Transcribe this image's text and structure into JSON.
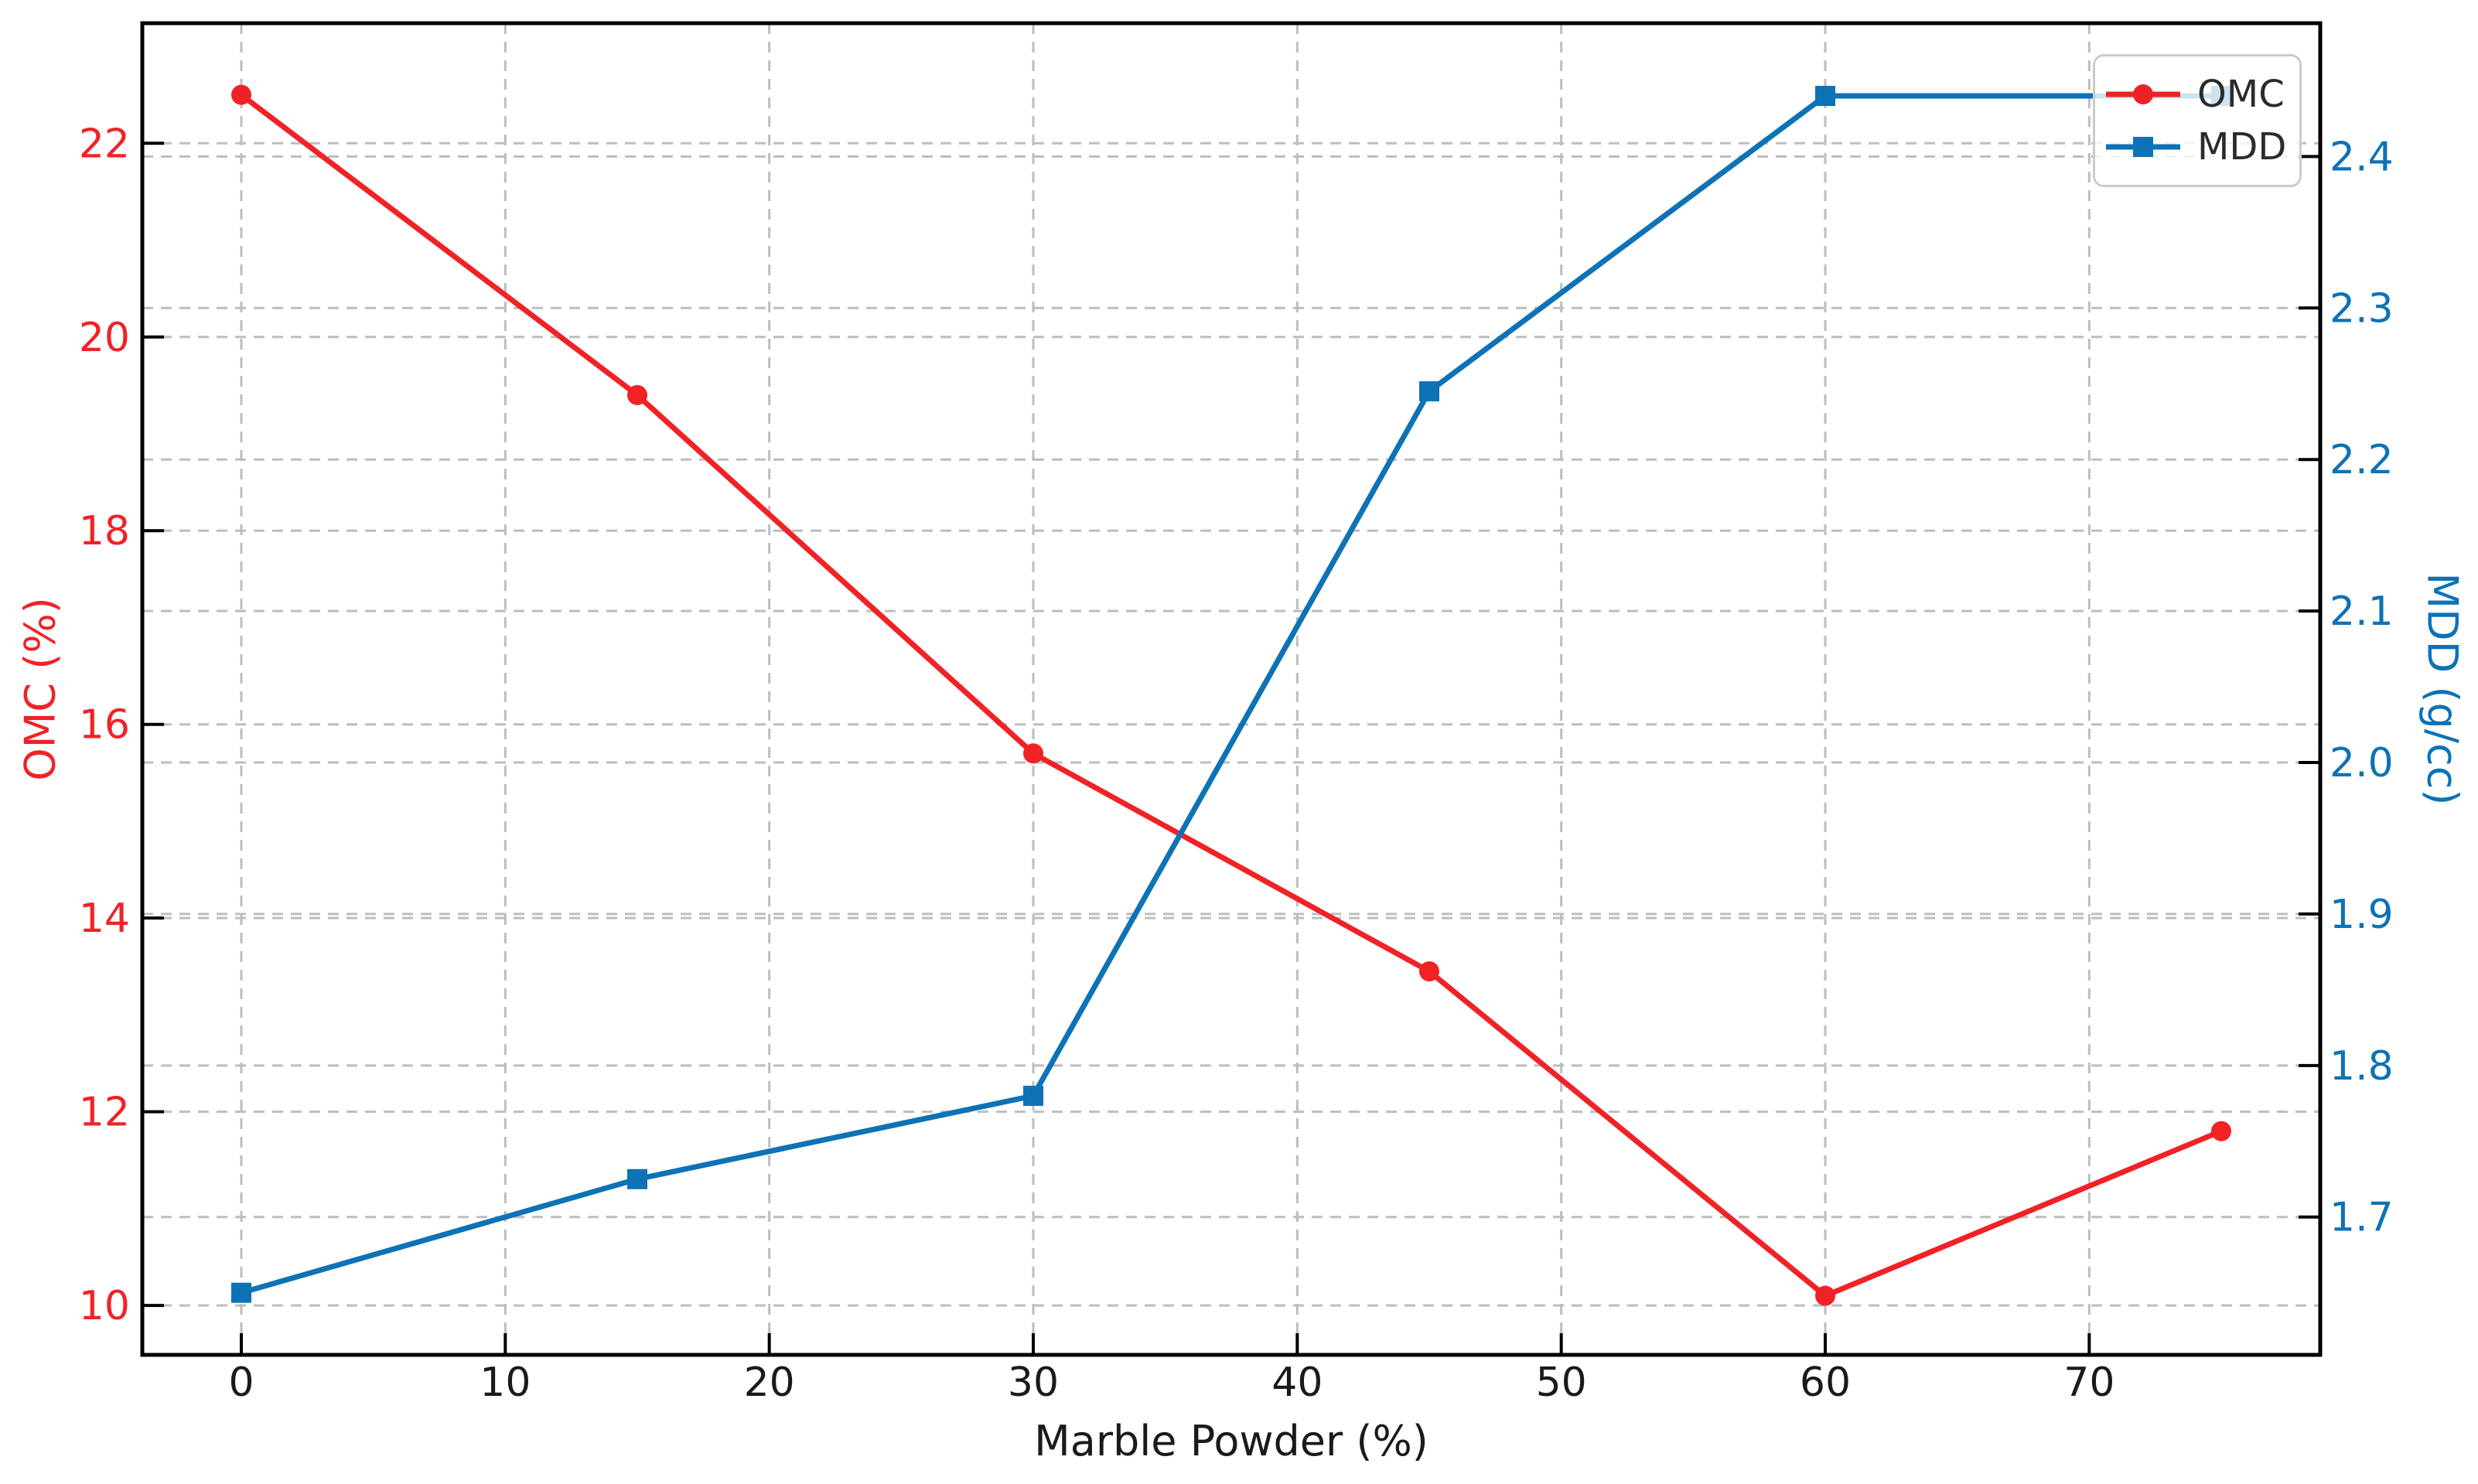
{
  "chart_data": {
    "type": "line",
    "dual_axis": true,
    "x": [
      0,
      15,
      30,
      45,
      60,
      75
    ],
    "series": [
      {
        "name": "OMC",
        "axis": "left",
        "marker": "circle",
        "color": "#f02226",
        "values": [
          22.5,
          19.4,
          15.7,
          13.45,
          10.1,
          11.8
        ]
      },
      {
        "name": "MDD",
        "axis": "right",
        "marker": "square",
        "color": "#0d72b6",
        "values": [
          1.65,
          1.725,
          1.78,
          2.245,
          2.44,
          2.44
        ]
      }
    ],
    "xlabel": "Marble Powder (%)",
    "ylabel_left": "OMC (%)",
    "ylabel_right": "MDD (g/cc)",
    "xticks": [
      0,
      10,
      20,
      30,
      40,
      50,
      60,
      70
    ],
    "xtick_labels": [
      "0",
      "10",
      "20",
      "30",
      "40",
      "50",
      "60",
      "70"
    ],
    "yticks_left": [
      10,
      12,
      14,
      16,
      18,
      20,
      22
    ],
    "ytick_labels_left": [
      "10",
      "12",
      "14",
      "16",
      "18",
      "20",
      "22"
    ],
    "yticks_right": [
      1.7,
      1.8,
      1.9,
      2.0,
      2.1,
      2.2,
      2.3,
      2.4
    ],
    "ytick_labels_right": [
      "1.7",
      "1.8",
      "1.9",
      "2.0",
      "2.1",
      "2.2",
      "2.3",
      "2.4"
    ],
    "xlim": [
      -3.75,
      78.75
    ],
    "ylim_left": [
      9.49,
      23.24
    ],
    "ylim_right": [
      1.609,
      2.488
    ],
    "grid": true,
    "legend_position": "upper right",
    "colors": {
      "omc": "#f02226",
      "mdd": "#0d72b6",
      "grid": "#bdbdbd",
      "spine": "#000000",
      "tick_label_x": "#1a1a1a",
      "legend_border": "#cbcbcb",
      "legend_text": "#2b2b2b"
    }
  }
}
